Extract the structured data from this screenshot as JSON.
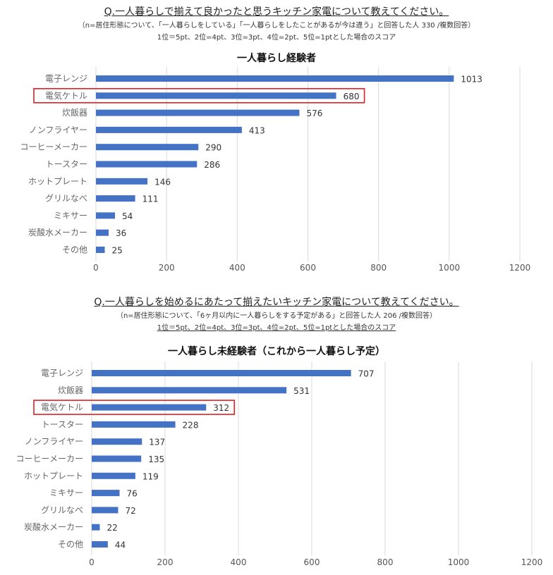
{
  "charts": [
    {
      "question": "Q.一人暮らしで揃えて良かったと思うキッチン家電について教えてください。",
      "note1": "（n=居住形態について、「一人暮らしをしている」「一人暮らしをしたことがあるが今は違う」と回答した人 330 /複数回答）",
      "note2": "1位＝5pt、2位=4pt、3位=3pt、4位=2pt、5位=1ptとした場合のスコア"
    },
    {
      "question": "Q.一人暮らしを始めるにあたって揃えたいキッチン家電について教えてください。",
      "note1": "（n=居住形態について、「6ヶ月以内に一人暮らしをする予定がある」と回答した人 206 /複数回答）",
      "note2": "1位＝5pt、2位=4pt、3位=3pt、4位=2pt、5位=1ptとした場合のスコア"
    }
  ],
  "chart_data": [
    {
      "type": "bar",
      "orientation": "horizontal",
      "title": "一人暮らし経験者",
      "categories": [
        "電子レンジ",
        "電気ケトル",
        "炊飯器",
        "ノンフライヤー",
        "コーヒーメーカー",
        "トースター",
        "ホットプレート",
        "グリルなべ",
        "ミキサー",
        "炭酸水メーカー",
        "その他"
      ],
      "values": [
        1013,
        680,
        576,
        413,
        290,
        286,
        146,
        111,
        54,
        36,
        25
      ],
      "highlight": "電気ケトル",
      "xlim": [
        0,
        1200
      ],
      "xticks": [
        0,
        200,
        400,
        600,
        800,
        1000,
        1200
      ],
      "grid": "vertical",
      "bar_color": "#4472C4",
      "highlight_color": "#E02020"
    },
    {
      "type": "bar",
      "orientation": "horizontal",
      "title": "一人暮らし未経験者（これから一人暮らし予定）",
      "categories": [
        "電子レンジ",
        "炊飯器",
        "電気ケトル",
        "トースター",
        "ノンフライヤー",
        "コーヒーメーカー",
        "ホットプレート",
        "ミキサー",
        "グリルなべ",
        "炭酸水メーカー",
        "その他"
      ],
      "values": [
        707,
        531,
        312,
        228,
        137,
        135,
        119,
        76,
        72,
        22,
        44
      ],
      "highlight": "電気ケトル",
      "xlim": [
        0,
        1200
      ],
      "xticks": [
        0,
        200,
        400,
        600,
        800,
        1000,
        1200
      ],
      "grid": "vertical",
      "bar_color": "#4472C4",
      "highlight_color": "#E02020"
    }
  ]
}
